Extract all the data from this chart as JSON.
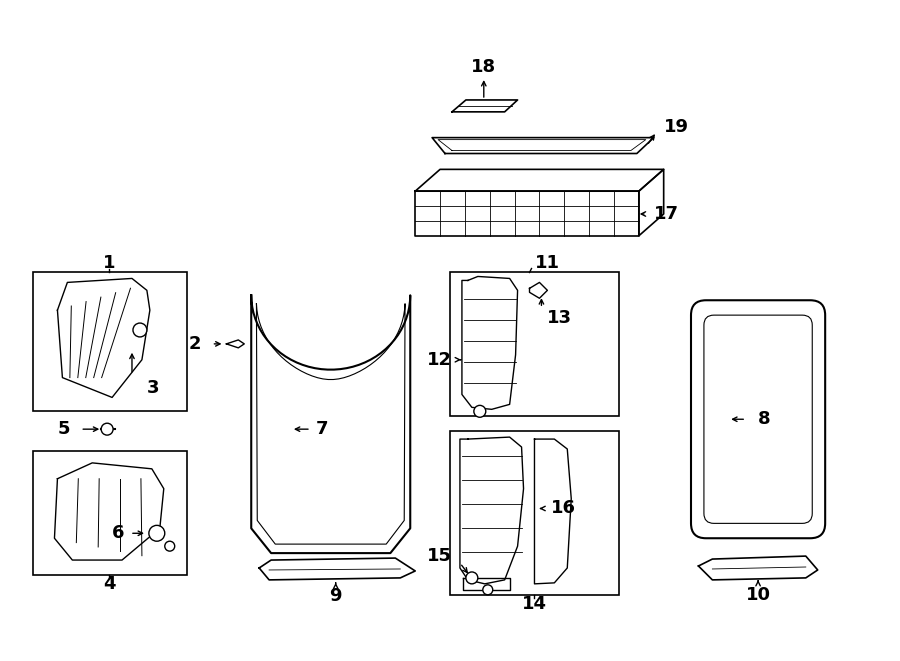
{
  "bg_color": "#ffffff",
  "line_color": "#000000",
  "fs": 11,
  "fs_bold": true
}
